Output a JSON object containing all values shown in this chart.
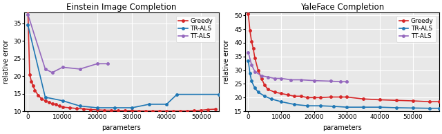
{
  "title1": "Einstein Image Completion",
  "title2": "YaleFace Completion",
  "xlabel": "parameters",
  "ylabel": "relative error",
  "bg_color": "#e8e8e8",
  "einstein": {
    "greedy_x": [
      0,
      500,
      1000,
      1500,
      2000,
      3000,
      4000,
      5000,
      6000,
      7000,
      8000,
      9000,
      10000,
      12000,
      14000,
      16000,
      18000,
      20000,
      22000,
      24000,
      26000,
      28000,
      30000,
      32000,
      34000,
      36000,
      38000,
      40000,
      42000,
      44000,
      46000,
      48000,
      50000,
      52000,
      54000
    ],
    "greedy_y": [
      38.5,
      20.5,
      18.5,
      17.2,
      16.0,
      14.5,
      13.5,
      13.0,
      12.5,
      12.2,
      12.0,
      11.5,
      11.2,
      11.0,
      10.8,
      10.7,
      10.5,
      10.4,
      10.3,
      10.3,
      10.2,
      10.2,
      10.2,
      10.1,
      10.1,
      10.1,
      10.1,
      10.1,
      10.1,
      10.1,
      10.1,
      10.2,
      10.3,
      10.5,
      10.6
    ],
    "trals_x": [
      0,
      5000,
      10000,
      15000,
      20000,
      25000,
      30000,
      35000,
      40000,
      43000,
      55000
    ],
    "trals_y": [
      34.5,
      14.0,
      13.0,
      11.5,
      11.0,
      11.0,
      11.0,
      12.0,
      12.0,
      14.8,
      14.8
    ],
    "ttals_x": [
      0,
      5000,
      7000,
      10000,
      15000,
      20000,
      23000
    ],
    "ttals_y": [
      37.5,
      22.0,
      21.0,
      22.5,
      22.0,
      23.5,
      23.5
    ],
    "xlim": [
      -1000,
      55000
    ],
    "ylim": [
      10,
      38
    ],
    "xticks": [
      0,
      10000,
      20000,
      30000,
      40000,
      50000
    ],
    "yticks": [
      10,
      15,
      20,
      25,
      30,
      35
    ]
  },
  "yaleface": {
    "greedy_x": [
      0,
      500,
      1000,
      1500,
      2000,
      3000,
      4000,
      5000,
      6000,
      8000,
      10000,
      12000,
      14000,
      16000,
      18000,
      20000,
      22000,
      25000,
      28000,
      30000,
      35000,
      40000,
      45000,
      50000,
      55000,
      58000
    ],
    "greedy_y": [
      50.5,
      44.5,
      40.5,
      38.0,
      34.5,
      30.0,
      27.0,
      24.5,
      23.0,
      22.0,
      21.5,
      21.0,
      20.5,
      20.5,
      20.0,
      20.0,
      20.0,
      20.2,
      20.2,
      20.2,
      19.5,
      19.2,
      19.0,
      18.8,
      18.5,
      18.5
    ],
    "trals_x": [
      0,
      500,
      1000,
      2000,
      3000,
      5000,
      7000,
      10000,
      14000,
      18000,
      22000,
      26000,
      30000,
      35000,
      40000,
      45000,
      50000,
      55000,
      58000
    ],
    "trals_y": [
      33.5,
      29.0,
      26.0,
      23.5,
      22.0,
      20.5,
      19.5,
      18.5,
      17.5,
      17.0,
      17.0,
      16.8,
      16.5,
      16.5,
      16.5,
      16.3,
      16.2,
      16.1,
      16.1
    ],
    "ttals_x": [
      0,
      1000,
      2000,
      4000,
      6000,
      8000,
      10000,
      13000,
      16000,
      20000,
      25000,
      28000,
      30000
    ],
    "ttals_y": [
      36.5,
      32.0,
      29.5,
      28.0,
      27.5,
      27.0,
      27.0,
      26.5,
      26.5,
      26.2,
      26.0,
      25.8,
      25.8
    ],
    "xlim": [
      -1000,
      58000
    ],
    "ylim": [
      15,
      51
    ],
    "xticks": [
      0,
      10000,
      20000,
      30000,
      40000,
      50000
    ],
    "yticks": [
      15,
      20,
      25,
      30,
      35,
      40,
      45,
      50
    ]
  },
  "greedy_color": "#d62728",
  "trals_color": "#1f77b4",
  "ttals_color": "#9467bd",
  "marker": "o",
  "markersize": 2.5,
  "linewidth": 1.2
}
